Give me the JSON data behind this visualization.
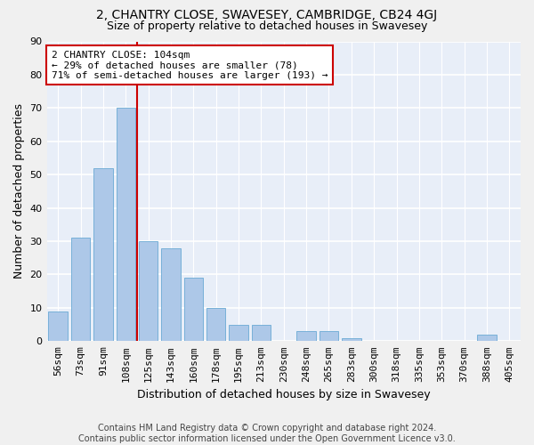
{
  "title": "2, CHANTRY CLOSE, SWAVESEY, CAMBRIDGE, CB24 4GJ",
  "subtitle": "Size of property relative to detached houses in Swavesey",
  "xlabel": "Distribution of detached houses by size in Swavesey",
  "ylabel": "Number of detached properties",
  "categories": [
    "56sqm",
    "73sqm",
    "91sqm",
    "108sqm",
    "125sqm",
    "143sqm",
    "160sqm",
    "178sqm",
    "195sqm",
    "213sqm",
    "230sqm",
    "248sqm",
    "265sqm",
    "283sqm",
    "300sqm",
    "318sqm",
    "335sqm",
    "353sqm",
    "370sqm",
    "388sqm",
    "405sqm"
  ],
  "values": [
    9,
    31,
    52,
    70,
    30,
    28,
    19,
    10,
    5,
    5,
    0,
    3,
    3,
    1,
    0,
    0,
    0,
    0,
    0,
    2,
    0
  ],
  "bar_color": "#adc8e8",
  "bar_edge_color": "#6aaad4",
  "background_color": "#e8eef8",
  "grid_color": "#ffffff",
  "vline_x_index": 3,
  "vline_color": "#cc0000",
  "annotation_line1": "2 CHANTRY CLOSE: 104sqm",
  "annotation_line2": "← 29% of detached houses are smaller (78)",
  "annotation_line3": "71% of semi-detached houses are larger (193) →",
  "annotation_box_color": "#cc0000",
  "ylim": [
    0,
    90
  ],
  "yticks": [
    0,
    10,
    20,
    30,
    40,
    50,
    60,
    70,
    80,
    90
  ],
  "title_fontsize": 10,
  "subtitle_fontsize": 9,
  "xlabel_fontsize": 9,
  "ylabel_fontsize": 9,
  "tick_fontsize": 8,
  "annotation_fontsize": 8,
  "footer_fontsize": 7,
  "footer_line1": "Contains HM Land Registry data © Crown copyright and database right 2024.",
  "footer_line2": "Contains public sector information licensed under the Open Government Licence v3.0."
}
